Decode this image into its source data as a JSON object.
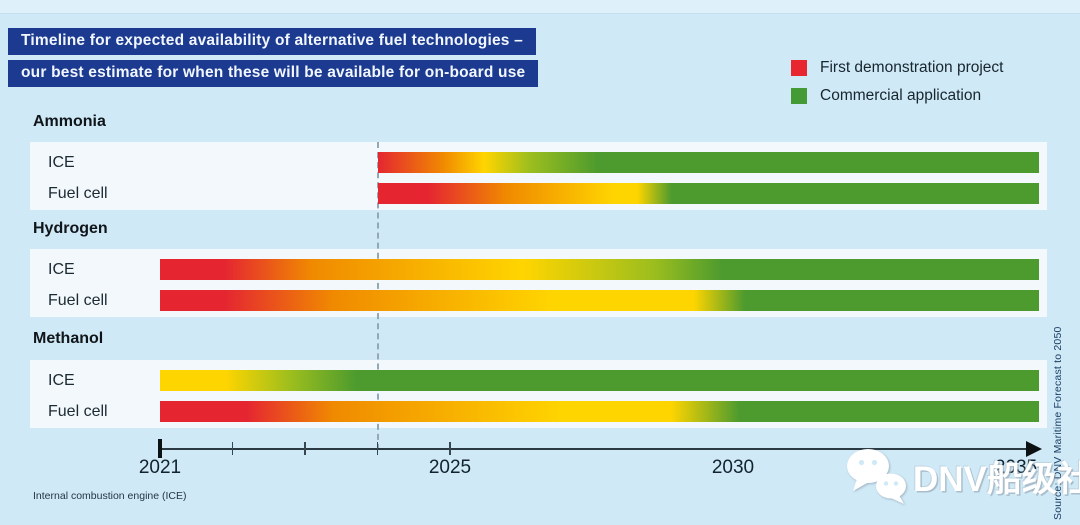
{
  "title": {
    "line1": "Timeline for expected availability of alternative fuel technologies –",
    "line2": "our best estimate for when these will be available for on-board use"
  },
  "legend": {
    "items": [
      {
        "label": "First demonstration project",
        "color": "#e8262f"
      },
      {
        "label": "Commercial application",
        "color": "#449a35"
      }
    ]
  },
  "chart_data": {
    "type": "bar",
    "variant": "gradient-timeline-gantt",
    "title": "Timeline for expected availability of alternative fuel technologies – our best estimate for when these will be available for on-board use",
    "legend": {
      "red": "First demonstration project",
      "green": "Commercial application"
    },
    "palette": {
      "red": "#e52631",
      "orange": "#f08a00",
      "yellow": "#ffd500",
      "yellowgreen": "#9cbe1e",
      "green": "#4d9b2e"
    },
    "x_axis": {
      "min": 2021,
      "max": 2035.4,
      "tick_labels": [
        {
          "text": "2021",
          "year": 2021
        },
        {
          "text": "2025",
          "year": 2025
        },
        {
          "text": "2030",
          "year": 2030
        },
        {
          "text": "2035",
          "year": 2035
        }
      ],
      "minor_tick_years": [
        2022,
        2023,
        2024,
        2025
      ],
      "major_tick_year": 2021,
      "marker_year": 2024,
      "grid": false
    },
    "groups": [
      {
        "name": "Ammonia",
        "rows": [
          {
            "label": "ICE",
            "start_year": 2024,
            "end_year": 2035.4,
            "stops": [
              [
                "red",
                2024
              ],
              [
                "orange",
                2024.9
              ],
              [
                "yellow",
                2025.6
              ],
              [
                "yellowgreen",
                2026.4
              ],
              [
                "green",
                2027.6
              ]
            ]
          },
          {
            "label": "Fuel cell",
            "start_year": 2024,
            "end_year": 2035.4,
            "stops": [
              [
                "red",
                2024
              ],
              [
                "red",
                2024.7
              ],
              [
                "orange",
                2026.0
              ],
              [
                "yellow",
                2027.9
              ],
              [
                "yellow",
                2028.3
              ],
              [
                "green",
                2028.9
              ]
            ]
          }
        ]
      },
      {
        "name": "Hydrogen",
        "rows": [
          {
            "label": "ICE",
            "start_year": 2021,
            "end_year": 2035.4,
            "stops": [
              [
                "red",
                2021
              ],
              [
                "red",
                2021.9
              ],
              [
                "orange",
                2023.1
              ],
              [
                "yellow",
                2026.3
              ],
              [
                "yellowgreen",
                2028.6
              ],
              [
                "green",
                2029.8
              ]
            ]
          },
          {
            "label": "Fuel cell",
            "start_year": 2021,
            "end_year": 2035.4,
            "stops": [
              [
                "red",
                2021
              ],
              [
                "red",
                2021.9
              ],
              [
                "orange",
                2023.4
              ],
              [
                "yellow",
                2026.8
              ],
              [
                "yellow",
                2029.3
              ],
              [
                "green",
                2030.2
              ]
            ]
          }
        ]
      },
      {
        "name": "Methanol",
        "rows": [
          {
            "label": "ICE",
            "start_year": 2021,
            "end_year": 2035.4,
            "stops": [
              [
                "yellow",
                2021
              ],
              [
                "yellow",
                2021.9
              ],
              [
                "yellowgreen",
                2022.8
              ],
              [
                "green",
                2023.7
              ]
            ]
          },
          {
            "label": "Fuel cell",
            "start_year": 2021,
            "end_year": 2035.4,
            "stops": [
              [
                "red",
                2021
              ],
              [
                "red",
                2022.2
              ],
              [
                "orange",
                2023.4
              ],
              [
                "yellow",
                2027.0
              ],
              [
                "yellow",
                2028.9
              ],
              [
                "green",
                2030.1
              ]
            ]
          }
        ]
      }
    ]
  },
  "footnote": "Internal combustion engine (ICE)",
  "source": {
    "text": "Source: DNV Maritime Forecast to 2050"
  },
  "watermark": {
    "text": "DNV船级社",
    "icon": "wechat-logo"
  }
}
